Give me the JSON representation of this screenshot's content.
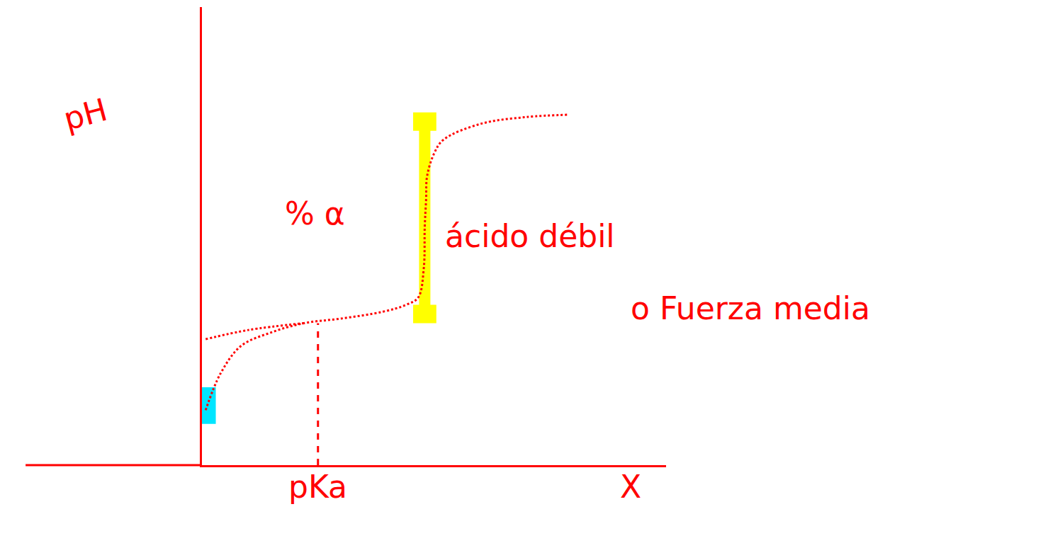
{
  "chart_data": {
    "type": "line",
    "x_label": "X",
    "y_label": "pH",
    "annotations": [
      "% α",
      "ácido débil",
      "o Fuerza media"
    ],
    "color": "#ff0000",
    "line_style": "dot",
    "series": [
      {
        "x": [
          0.08,
          0.4,
          0.84,
          1.5,
          2.2,
          3.0,
          3.9,
          4.4,
          4.66,
          4.78,
          4.8,
          4.83,
          4.85,
          5.0,
          5.2,
          6.0,
          7.0,
          7.9
        ],
        "values": [
          1.2,
          2.0,
          2.6,
          2.9,
          3.1,
          3.2,
          3.35,
          3.5,
          3.66,
          4.3,
          5.2,
          5.8,
          6.3,
          6.8,
          7.1,
          7.45,
          7.6,
          7.65
        ]
      },
      {
        "x": [
          0.08,
          1.0,
          2.2
        ],
        "values": [
          2.75,
          2.95,
          3.1
        ]
      }
    ],
    "pka_line": {
      "label": "pKa",
      "x": 2.5,
      "y": 3.1
    },
    "highlights": [
      {
        "color": "#ffff00",
        "x": 4.8,
        "y": [
          3.3,
          7.5
        ]
      },
      {
        "color": "#00e5ff",
        "x": 0.1,
        "y": [
          0.9,
          1.7
        ]
      }
    ],
    "xlim": [
      0,
      10
    ],
    "ylim": [
      0,
      10
    ],
    "xticks": [],
    "yticks": [],
    "tick_labels": false,
    "grid": false
  }
}
